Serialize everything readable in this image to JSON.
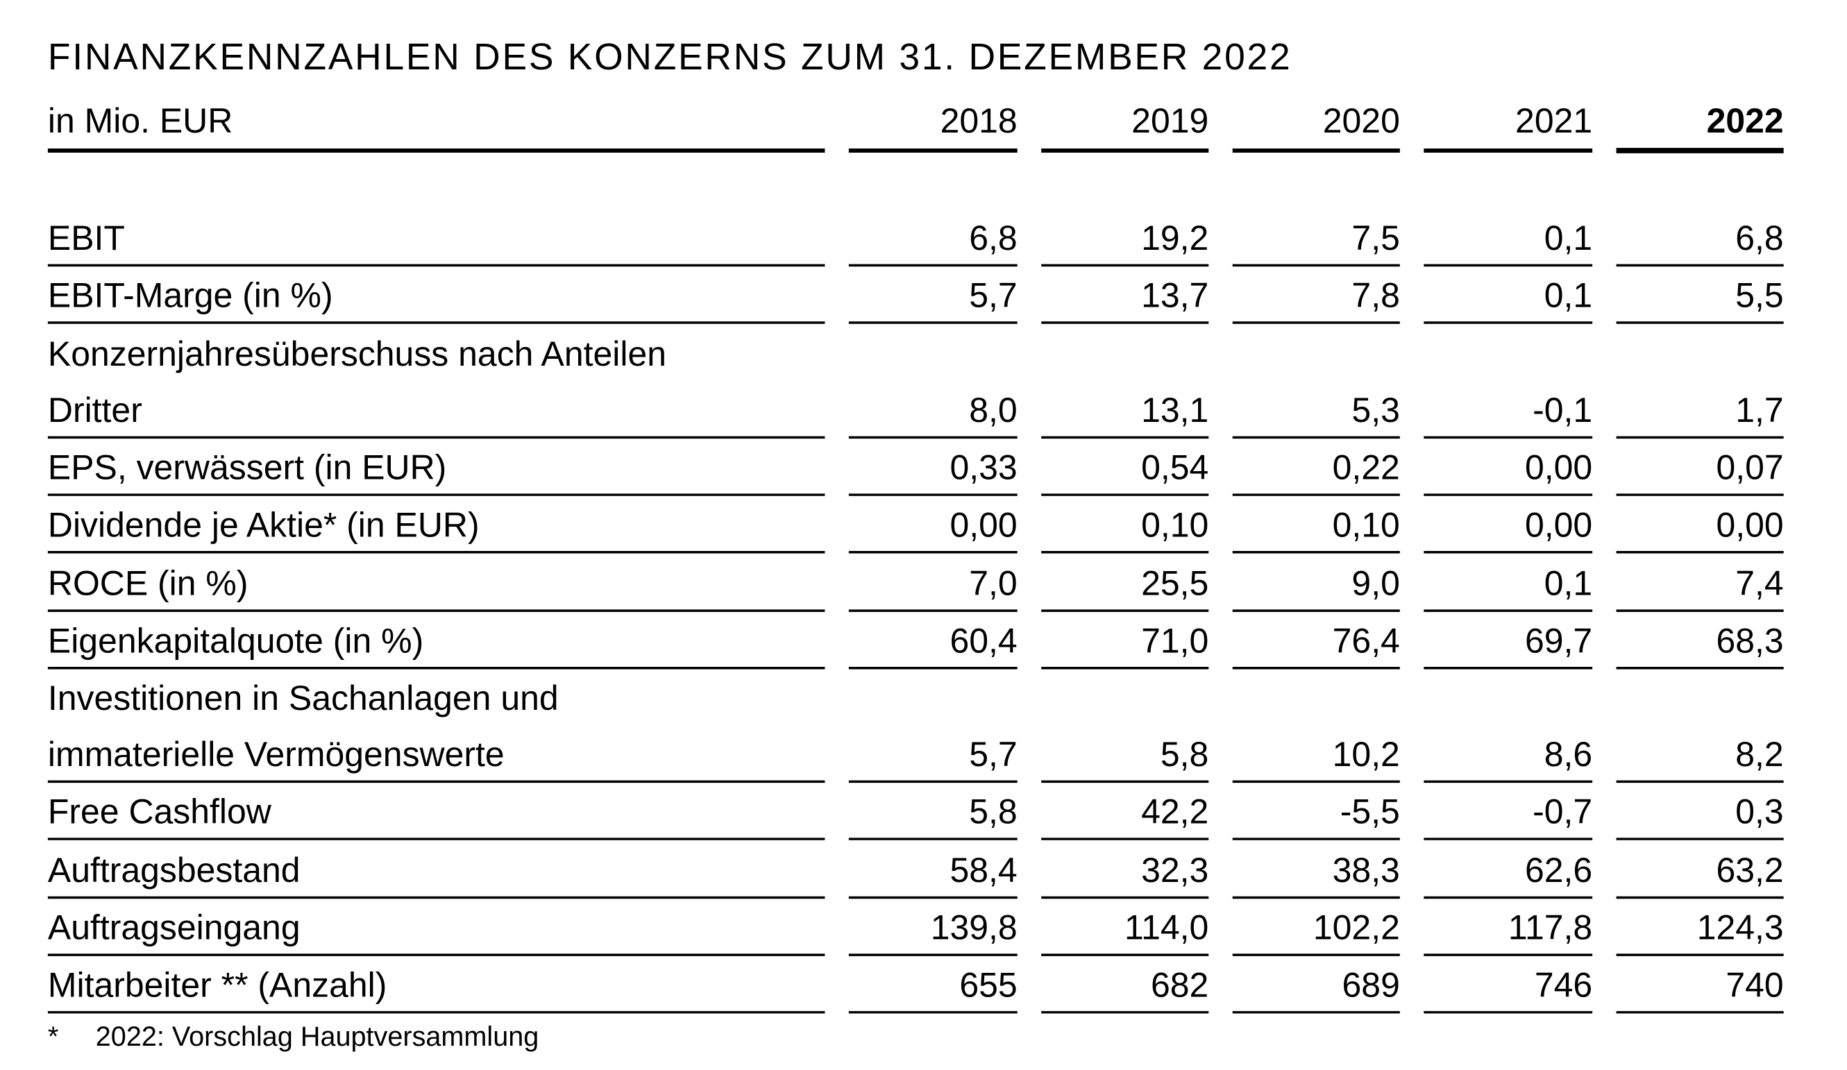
{
  "header": {
    "title": "FINANZKENNZAHLEN DES KONZERNS ZUM 31. DEZEMBER 2022",
    "unit_label": "in Mio. EUR"
  },
  "table": {
    "columns": [
      "2018",
      "2019",
      "2020",
      "2021",
      "2022"
    ],
    "rows": [
      {
        "label_lines": [
          "EBIT"
        ],
        "values": [
          "6,8",
          "19,2",
          "7,5",
          "0,1",
          "6,8"
        ]
      },
      {
        "label_lines": [
          "EBIT-Marge (in %)"
        ],
        "values": [
          "5,7",
          "13,7",
          "7,8",
          "0,1",
          "5,5"
        ]
      },
      {
        "label_lines": [
          "Konzernjahresüberschuss nach Anteilen",
          "Dritter"
        ],
        "values": [
          "8,0",
          "13,1",
          "5,3",
          "-0,1",
          "1,7"
        ]
      },
      {
        "label_lines": [
          "EPS, verwässert (in EUR)"
        ],
        "values": [
          "0,33",
          "0,54",
          "0,22",
          "0,00",
          "0,07"
        ]
      },
      {
        "label_lines": [
          "Dividende je Aktie* (in EUR)"
        ],
        "values": [
          "0,00",
          "0,10",
          "0,10",
          "0,00",
          "0,00"
        ]
      },
      {
        "label_lines": [
          "ROCE (in %)"
        ],
        "values": [
          "7,0",
          "25,5",
          "9,0",
          "0,1",
          "7,4"
        ]
      },
      {
        "label_lines": [
          "Eigenkapitalquote (in %)"
        ],
        "values": [
          "60,4",
          "71,0",
          "76,4",
          "69,7",
          "68,3"
        ]
      },
      {
        "label_lines": [
          "Investitionen in Sachanlagen und",
          "immaterielle Vermögenswerte"
        ],
        "values": [
          "5,7",
          "5,8",
          "10,2",
          "8,6",
          "8,2"
        ]
      },
      {
        "label_lines": [
          "Free Cashflow"
        ],
        "values": [
          "5,8",
          "42,2",
          "-5,5",
          "-0,7",
          "0,3"
        ]
      },
      {
        "label_lines": [
          "Auftragsbestand"
        ],
        "values": [
          "58,4",
          "32,3",
          "38,3",
          "62,6",
          "63,2"
        ]
      },
      {
        "label_lines": [
          "Auftragseingang"
        ],
        "values": [
          "139,8",
          "114,0",
          "102,2",
          "117,8",
          "124,3"
        ]
      },
      {
        "label_lines": [
          "Mitarbeiter ** (Anzahl)"
        ],
        "values": [
          "655",
          "682",
          "689",
          "746",
          "740"
        ]
      }
    ]
  },
  "footnote": {
    "marker": "*",
    "text": "2022: Vorschlag Hauptversammlung"
  }
}
